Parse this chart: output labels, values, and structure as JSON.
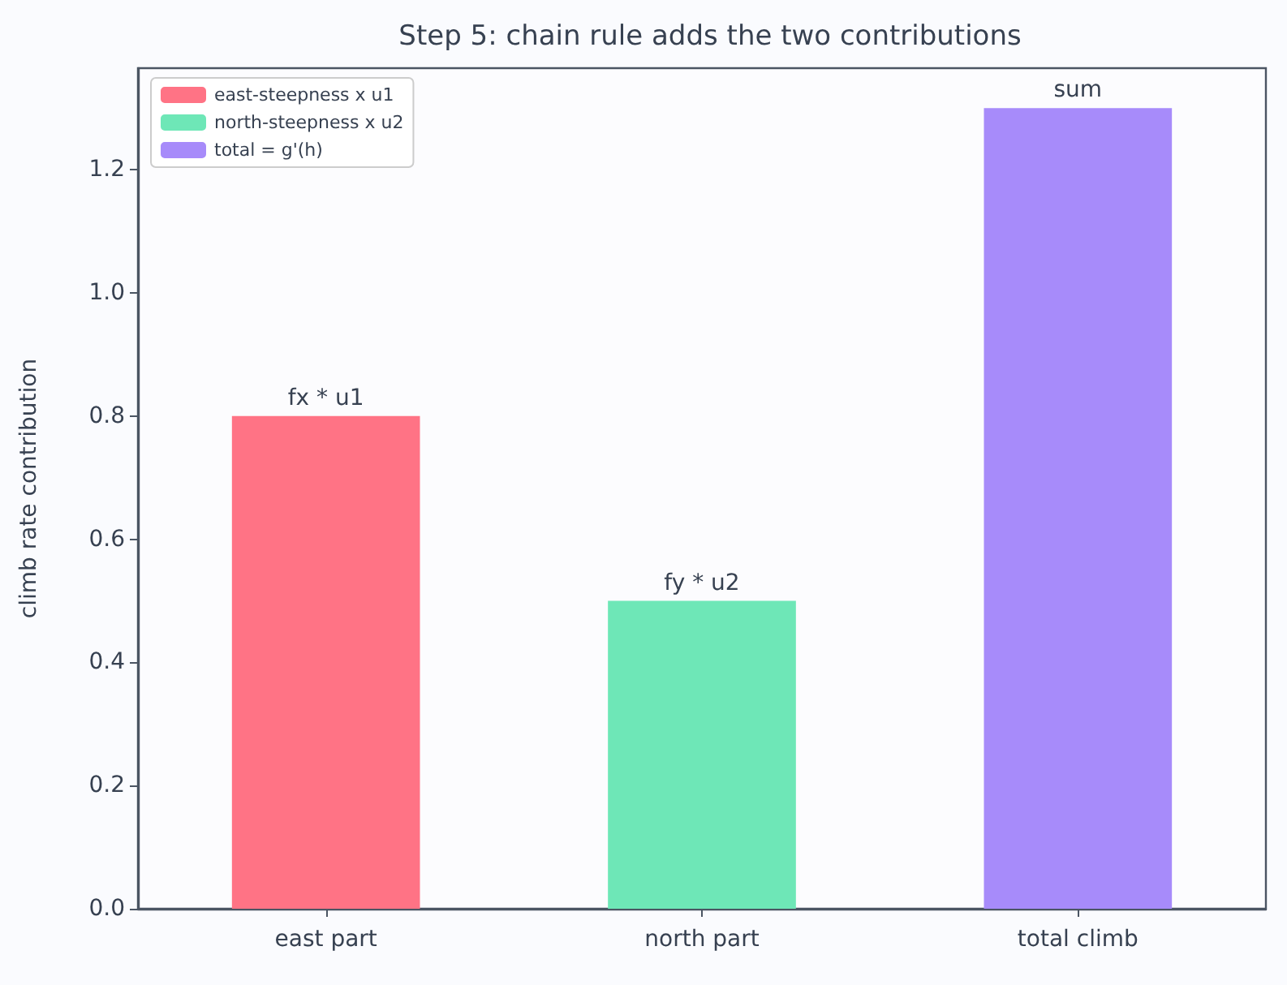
{
  "chart_data": {
    "type": "bar",
    "title": "Step 5: chain rule adds the two contributions",
    "ylabel": "climb rate contribution",
    "categories": [
      "east part",
      "north part",
      "total climb"
    ],
    "series": [
      {
        "name": "east-steepness x u1",
        "color": "#ff7385",
        "values": [
          0.8,
          null,
          null
        ],
        "value_labels": [
          "fx * u1",
          null,
          null
        ]
      },
      {
        "name": "north-steepness x u2",
        "color": "#6ee7b7",
        "values": [
          null,
          0.5,
          null
        ],
        "value_labels": [
          null,
          "fy * u2",
          null
        ]
      },
      {
        "name": "total = g'(h)",
        "color": "#a78bfa",
        "values": [
          null,
          null,
          1.3
        ],
        "value_labels": [
          null,
          null,
          "sum"
        ]
      }
    ],
    "ylim": [
      0,
      1.365
    ],
    "yticks": [
      {
        "value": 0,
        "label": "0.0"
      },
      0.2,
      0.4,
      0.6,
      0.8,
      {
        "value": 1,
        "label": "1.0"
      },
      1.2
    ],
    "legend": "top left",
    "grid": false
  }
}
